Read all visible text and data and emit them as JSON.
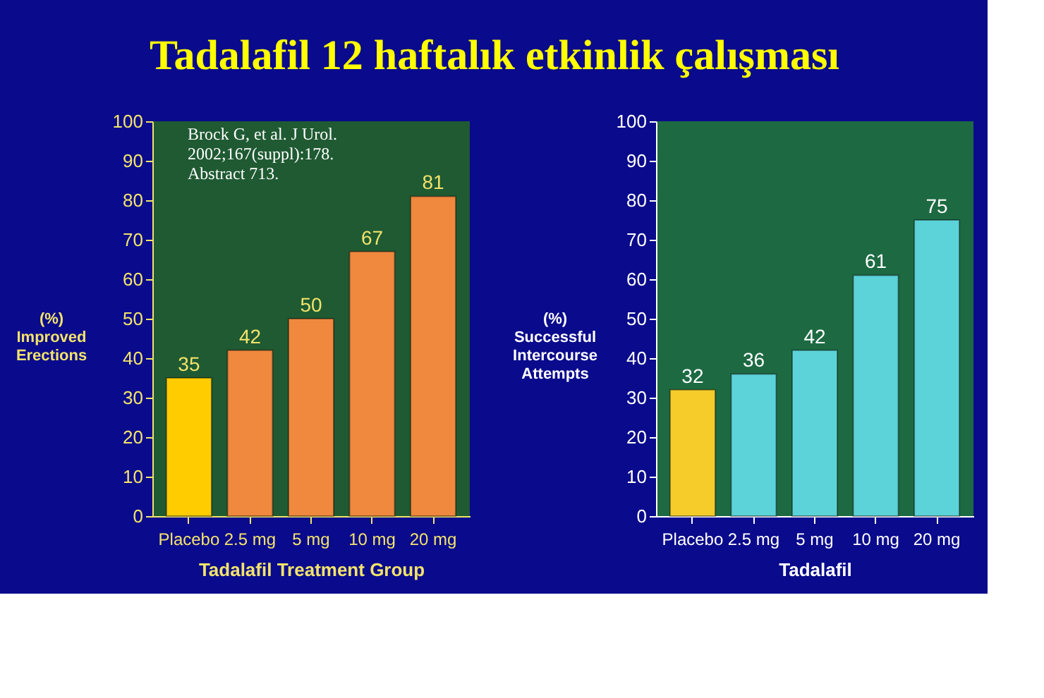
{
  "chart_data": [
    {
      "type": "bar",
      "title": "Tadalafil 12 haftalık etkinlik çalışması",
      "categories": [
        "Placebo",
        "2.5 mg",
        "5 mg",
        "10 mg",
        "20 mg"
      ],
      "values": [
        35,
        42,
        50,
        67,
        81
      ],
      "colors": [
        "#ffcc00",
        "#f0883e",
        "#f0883e",
        "#f0883e",
        "#f0883e"
      ],
      "ylim": [
        0,
        100
      ],
      "yticks": [
        0,
        10,
        20,
        30,
        40,
        50,
        60,
        70,
        80,
        90,
        100
      ],
      "ylabel": "(%)\nImproved\nErections",
      "xlabel": "Tadalafil Treatment Group",
      "annotations": [
        "Brock G, et al. J Urol.\n2002;167(suppl):178.\nAbstract 713."
      ],
      "data_labels": true,
      "grid": false
    },
    {
      "type": "bar",
      "categories": [
        "Placebo",
        "2.5 mg",
        "5 mg",
        "10 mg",
        "20 mg"
      ],
      "values": [
        32,
        36,
        42,
        61,
        75
      ],
      "colors": [
        "#f5cc2a",
        "#5cd3d8",
        "#5cd3d8",
        "#5cd3d8",
        "#5cd3d8"
      ],
      "ylim": [
        0,
        100
      ],
      "yticks": [
        0,
        10,
        20,
        30,
        40,
        50,
        60,
        70,
        80,
        90,
        100
      ],
      "ylabel": "(%)\nSuccessful\nIntercourse\nAttempts",
      "xlabel": "Tadalafil",
      "data_labels": true,
      "grid": false
    }
  ]
}
